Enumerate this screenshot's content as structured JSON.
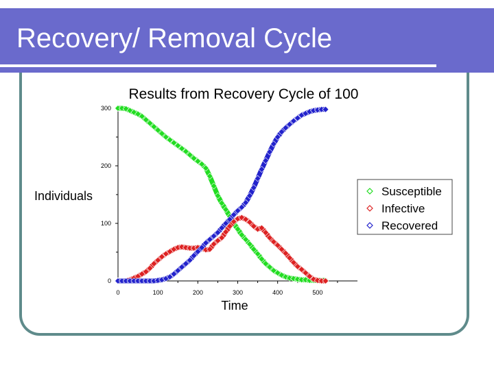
{
  "slide": {
    "title": "Recovery/ Removal Cycle"
  },
  "colors": {
    "header_bg": "#6a6acc",
    "frame": "#5f8b8b"
  },
  "chart_data": {
    "type": "scatter",
    "title": "Results from Recovery Cycle of 100",
    "xlabel": "Time",
    "ylabel": "Individuals",
    "xlim": [
      0,
      600
    ],
    "ylim": [
      0,
      300
    ],
    "x_ticks": [
      "0",
      "100",
      "200",
      "300",
      "400",
      "500"
    ],
    "y_ticks": [
      "0",
      "100",
      "200",
      "300"
    ],
    "legend_position": "right",
    "series": [
      {
        "name": "Susceptible",
        "color": "#22dd22",
        "x": [
          0,
          10,
          20,
          30,
          40,
          50,
          60,
          70,
          80,
          90,
          100,
          110,
          120,
          130,
          140,
          150,
          160,
          170,
          180,
          190,
          200,
          210,
          220,
          230,
          240,
          250,
          260,
          270,
          280,
          290,
          300,
          310,
          320,
          330,
          340,
          350,
          360,
          370,
          380,
          390,
          400,
          410,
          420,
          430,
          440,
          450,
          460,
          470,
          480,
          490,
          500,
          510,
          520
        ],
        "y": [
          300,
          300,
          299,
          296,
          293,
          290,
          286,
          280,
          274,
          268,
          262,
          256,
          250,
          245,
          240,
          235,
          230,
          225,
          219,
          213,
          208,
          203,
          196,
          182,
          165,
          148,
          135,
          124,
          112,
          100,
          90,
          80,
          72,
          64,
          55,
          47,
          38,
          30,
          24,
          18,
          14,
          10,
          7,
          5,
          4,
          3,
          2,
          2,
          1,
          1,
          1,
          1,
          1
        ]
      },
      {
        "name": "Infective",
        "color": "#dd2222",
        "x": [
          0,
          10,
          20,
          30,
          40,
          50,
          60,
          70,
          80,
          90,
          100,
          110,
          120,
          130,
          140,
          150,
          160,
          170,
          180,
          190,
          200,
          210,
          220,
          230,
          240,
          250,
          260,
          270,
          280,
          290,
          300,
          310,
          320,
          330,
          340,
          350,
          360,
          370,
          380,
          390,
          400,
          410,
          420,
          430,
          440,
          450,
          460,
          470,
          480,
          490,
          500,
          510,
          520
        ],
        "y": [
          0,
          0,
          0,
          2,
          5,
          8,
          12,
          16,
          22,
          30,
          36,
          42,
          47,
          51,
          55,
          58,
          59,
          58,
          57,
          57,
          58,
          57,
          54,
          55,
          64,
          70,
          75,
          85,
          95,
          103,
          108,
          110,
          107,
          102,
          95,
          90,
          92,
          84,
          75,
          68,
          62,
          55,
          48,
          40,
          32,
          25,
          20,
          14,
          8,
          3,
          1,
          0,
          0
        ]
      },
      {
        "name": "Recovered",
        "color": "#2222cc",
        "x": [
          0,
          10,
          20,
          30,
          40,
          50,
          60,
          70,
          80,
          90,
          100,
          110,
          120,
          130,
          140,
          150,
          160,
          170,
          180,
          190,
          200,
          210,
          220,
          230,
          240,
          250,
          260,
          270,
          280,
          290,
          300,
          310,
          320,
          330,
          340,
          350,
          360,
          370,
          380,
          390,
          400,
          410,
          420,
          430,
          440,
          450,
          460,
          470,
          480,
          490,
          500,
          510,
          520
        ],
        "y": [
          0,
          0,
          0,
          0,
          0,
          0,
          0,
          0,
          0,
          0,
          1,
          2,
          4,
          7,
          12,
          18,
          24,
          30,
          36,
          44,
          51,
          58,
          66,
          72,
          78,
          84,
          92,
          100,
          107,
          115,
          122,
          128,
          136,
          148,
          162,
          178,
          194,
          209,
          224,
          238,
          250,
          259,
          266,
          272,
          278,
          283,
          288,
          291,
          294,
          296,
          297,
          298,
          298
        ]
      }
    ]
  }
}
